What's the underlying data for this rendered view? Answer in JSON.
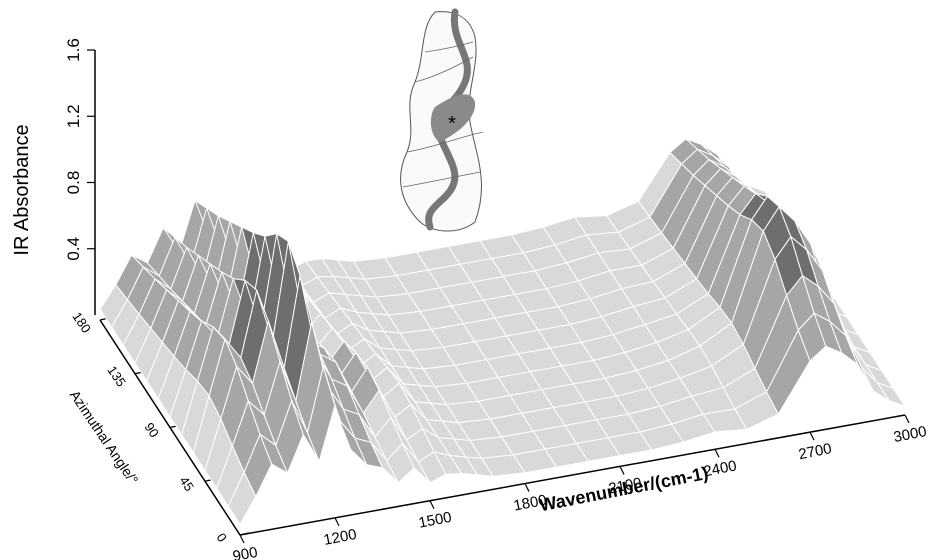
{
  "chart_data": {
    "type": "surface",
    "xlabel": "Wavenumber/(cm-1)",
    "ylabel": "Azimuthal Angle/°",
    "zlabel": "IR Absorbance",
    "x_ticks": [
      900,
      1200,
      1500,
      1800,
      2100,
      2400,
      2700,
      3000
    ],
    "y_ticks": [
      0,
      45,
      90,
      135,
      180
    ],
    "z_ticks": [
      0.4,
      0.8,
      1.2,
      1.6
    ],
    "xlim": [
      900,
      3000
    ],
    "ylim": [
      0,
      180
    ],
    "zlim": [
      0,
      1.6
    ],
    "angles": [
      0,
      15,
      30,
      45,
      60,
      75,
      90,
      105,
      120,
      135,
      150,
      165,
      180
    ],
    "wavenumber_grid": [
      900,
      950,
      1000,
      1050,
      1100,
      1150,
      1200,
      1250,
      1300,
      1350,
      1400,
      1450,
      1500,
      1550,
      1600,
      1650,
      1700,
      1800,
      1900,
      2000,
      2100,
      2200,
      2300,
      2400,
      2500,
      2600,
      2700,
      2750,
      2800,
      2850,
      2900,
      2950,
      3000
    ],
    "base_spectrum": [
      0.05,
      0.3,
      0.55,
      0.45,
      0.75,
      0.5,
      0.95,
      0.55,
      0.4,
      0.35,
      0.2,
      0.3,
      0.15,
      0.2,
      0.1,
      0.08,
      0.06,
      0.05,
      0.05,
      0.05,
      0.05,
      0.05,
      0.06,
      0.08,
      0.12,
      0.2,
      0.6,
      0.7,
      0.62,
      0.5,
      0.25,
      0.08,
      0.04
    ],
    "angle_modulation": [
      0.55,
      0.65,
      0.78,
      0.92,
      1.0,
      0.95,
      0.85,
      0.78,
      0.72,
      0.66,
      0.6,
      0.55,
      0.5
    ],
    "surface_colors": {
      "light": "#d9d9d9",
      "mid": "#a6a6a6",
      "dark": "#6e6e6e",
      "grid": "#ffffff"
    },
    "inset": {
      "shape": "helical-fiber-sketch",
      "marker": "*"
    }
  }
}
